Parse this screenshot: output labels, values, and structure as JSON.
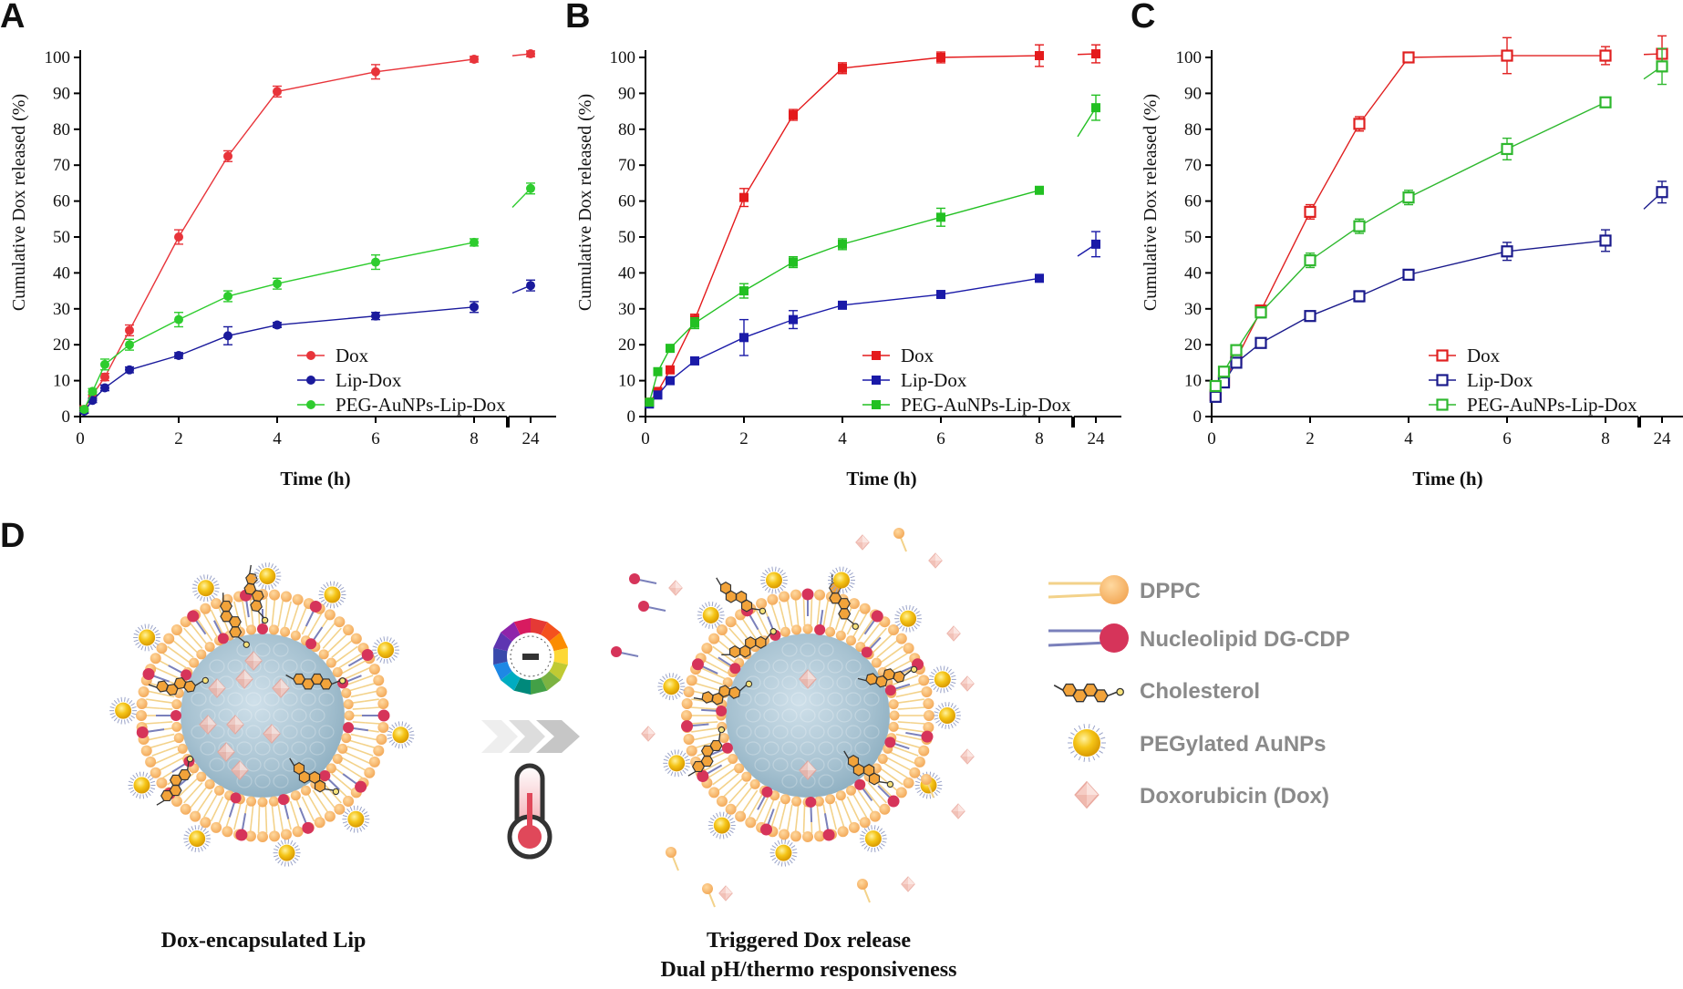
{
  "panels": [
    {
      "letter": "A",
      "ylabel": "Cumulative Dox released (%)",
      "xlabel": "Time (h)"
    },
    {
      "letter": "B",
      "ylabel": "Cumulative Dox released (%)",
      "xlabel": "Time (h)"
    },
    {
      "letter": "C",
      "ylabel": "Cumulative Dox released (%)",
      "xlabel": "Time (h)"
    }
  ],
  "colors": {
    "Dox_A": "#e8343a",
    "Lip_A": "#1a1a9c",
    "PEG_A": "#2ecc2e",
    "Dox_B": "#e41a1c",
    "Lip_B": "#1a1aa8",
    "PEG_B": "#22c022",
    "Dox_C": "#e02020",
    "Lip_C": "#1a1a8c",
    "PEG_C": "#2eb82e",
    "lipid_head": "#f6b96a",
    "lipid_tail": "#f3d28a",
    "nucleolipid": "#d6345a",
    "nucleo_tail": "#7a80bb",
    "aunp": "#f5c518",
    "core": "#a9c4d3"
  },
  "chart_data": [
    {
      "type": "line",
      "panel": "A",
      "ylabel": "Cumulative Dox released (%)",
      "xlabel": "Time (h)",
      "ylim": [
        0,
        100
      ],
      "yticks": [
        0,
        10,
        20,
        30,
        40,
        50,
        60,
        70,
        80,
        90,
        100
      ],
      "xticks": [
        "0",
        "2",
        "4",
        "6",
        "8",
        "24"
      ],
      "axis_break": "between 8 and 24",
      "marker": "filled circle",
      "legend_position": "bottom-right",
      "x": [
        0.08,
        0.25,
        0.5,
        1,
        2,
        3,
        4,
        6,
        8,
        24
      ],
      "series": [
        {
          "name": "Dox",
          "marker": "filled-circle",
          "values": [
            2,
            6,
            11,
            24,
            50,
            72.5,
            90.5,
            96,
            99.5,
            101
          ],
          "err": [
            1,
            0.8,
            1,
            1.5,
            2,
            1.5,
            1.5,
            2,
            0.8,
            0.8
          ]
        },
        {
          "name": "Lip-Dox",
          "marker": "filled-circle",
          "values": [
            1.5,
            4.5,
            8,
            13,
            17,
            22.5,
            25.5,
            28,
            30.5,
            36.5
          ],
          "err": [
            0.6,
            0.6,
            0.8,
            0.8,
            0.8,
            2.5,
            0.7,
            1,
            1.5,
            1.5
          ]
        },
        {
          "name": "PEG-AuNPs-Lip-Dox",
          "marker": "filled-circle",
          "values": [
            2,
            7,
            14.5,
            20,
            27,
            33.5,
            37,
            43,
            48.5,
            63.5
          ],
          "err": [
            0.6,
            0.8,
            1.5,
            1.5,
            2,
            1.5,
            1.5,
            2,
            1,
            1.5
          ]
        }
      ]
    },
    {
      "type": "line",
      "panel": "B",
      "ylabel": "Cumulative Dox released (%)",
      "xlabel": "Time (h)",
      "ylim": [
        0,
        100
      ],
      "yticks": [
        0,
        10,
        20,
        30,
        40,
        50,
        60,
        70,
        80,
        90,
        100
      ],
      "xticks": [
        "0",
        "2",
        "4",
        "6",
        "8",
        "24"
      ],
      "axis_break": "between 8 and 24",
      "marker": "filled square",
      "legend_position": "bottom-right",
      "x": [
        0.08,
        0.25,
        0.5,
        1,
        2,
        3,
        4,
        6,
        8,
        24
      ],
      "series": [
        {
          "name": "Dox",
          "marker": "filled-square",
          "values": [
            4,
            7,
            13,
            27,
            61,
            84,
            97,
            100,
            100.5,
            101
          ],
          "err": [
            1,
            1,
            1,
            1.5,
            2.5,
            1.5,
            1.5,
            1.5,
            3,
            2.5
          ]
        },
        {
          "name": "Lip-Dox",
          "marker": "filled-square",
          "values": [
            3.5,
            6,
            10,
            15.5,
            22,
            27,
            31,
            34,
            38.5,
            48
          ],
          "err": [
            0.6,
            1,
            1,
            0.8,
            5,
            2.5,
            0.8,
            1,
            1,
            3.5
          ]
        },
        {
          "name": "PEG-AuNPs-Lip-Dox",
          "marker": "filled-square",
          "values": [
            4,
            12.5,
            19,
            26,
            35,
            43,
            48,
            55.5,
            63,
            86
          ],
          "err": [
            0.6,
            0.8,
            1,
            1.5,
            2,
            1.5,
            1.5,
            2.5,
            0.8,
            3.5
          ]
        }
      ]
    },
    {
      "type": "line",
      "panel": "C",
      "ylabel": "Cumulative Dox released (%)",
      "xlabel": "Time (h)",
      "ylim": [
        0,
        100
      ],
      "yticks": [
        0,
        10,
        20,
        30,
        40,
        50,
        60,
        70,
        80,
        90,
        100
      ],
      "xticks": [
        "0",
        "2",
        "4",
        "6",
        "8",
        "24"
      ],
      "axis_break": "between 8 and 24",
      "marker": "open square",
      "legend_position": "bottom-right",
      "x": [
        0.08,
        0.25,
        0.5,
        1,
        2,
        3,
        4,
        6,
        8,
        24
      ],
      "series": [
        {
          "name": "Dox",
          "marker": "open-square",
          "values": [
            6,
            10,
            16,
            29.5,
            57,
            81.5,
            100,
            100.5,
            100.5,
            101
          ],
          "err": [
            1,
            1,
            1,
            1.5,
            2,
            2,
            1,
            5,
            2.5,
            5
          ]
        },
        {
          "name": "Lip-Dox",
          "marker": "open-square",
          "values": [
            5.5,
            9.5,
            15,
            20.5,
            28,
            33.5,
            39.5,
            46,
            49,
            62.5
          ],
          "err": [
            0.8,
            0.8,
            0.8,
            0.8,
            1,
            1.5,
            1,
            2.5,
            3,
            3
          ]
        },
        {
          "name": "PEG-AuNPs-Lip-Dox",
          "marker": "open-square",
          "values": [
            8.5,
            12.5,
            18.5,
            29,
            43.5,
            53,
            61,
            74.5,
            87.5,
            97.5
          ],
          "err": [
            0.8,
            0.8,
            1,
            1.5,
            2,
            2,
            2,
            3,
            1,
            5
          ]
        }
      ]
    }
  ],
  "panel_d": {
    "letter": "D",
    "caption_left": "Dox-encapsulated Lip",
    "caption_right_1": "Triggered Dox release",
    "caption_right_2": "Dual pH/thermo responsiveness",
    "legend": [
      "DPPC",
      "Nucleolipid DG-CDP",
      "Cholesterol",
      "PEGylated AuNPs",
      "Doxorubicin (Dox)"
    ]
  }
}
